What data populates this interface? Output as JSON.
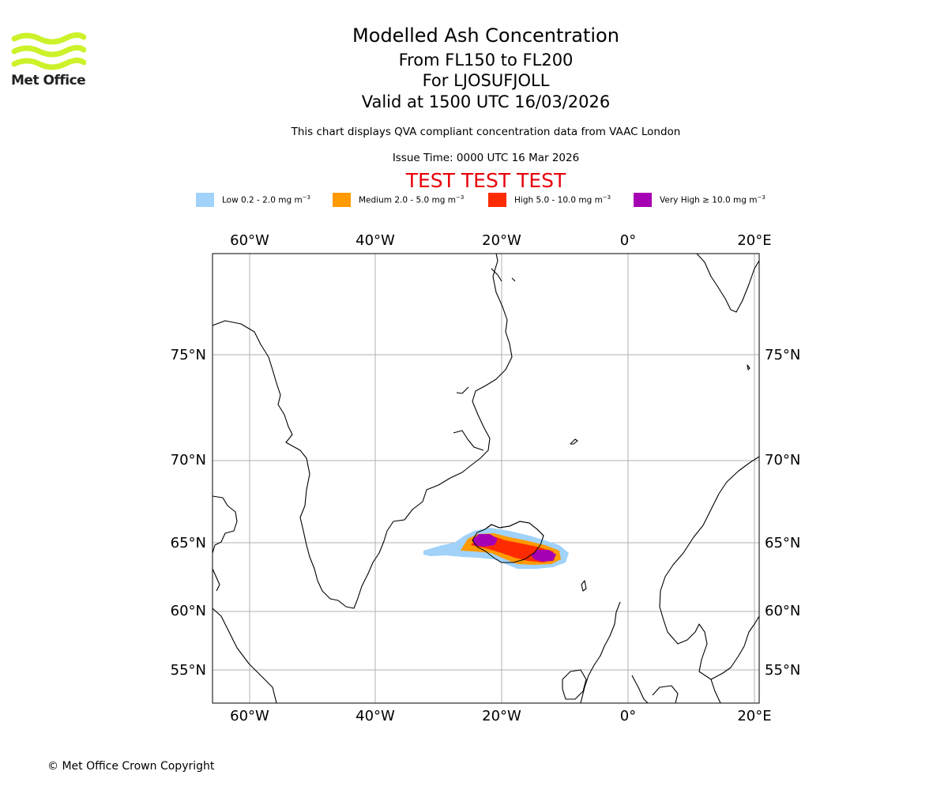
{
  "logo": {
    "text": "Met Office",
    "icon": "met-office-wave-icon",
    "color": "#ccf22a"
  },
  "titles": {
    "main": "Modelled Ash Concentration",
    "levels": "From FL150 to FL200",
    "volcano": "For LJOSUFJOLL",
    "valid": "Valid at 1500 UTC 16/03/2026",
    "description": "This chart displays QVA compliant concentration data from VAAC London",
    "issue": "Issue Time: 0000 UTC 16 Mar 2026",
    "test_banner": "TEST TEST TEST"
  },
  "legend": [
    {
      "label": "Low 0.2 - 2.0 mg m",
      "color": "#a0d2fa"
    },
    {
      "label": "Medium 2.0 - 5.0 mg m",
      "color": "#ff9a00"
    },
    {
      "label": "High 5.0 - 10.0 mg m",
      "color": "#ff2b00"
    },
    {
      "label": "Very High ≥ 10.0 mg m",
      "color": "#a600b4"
    }
  ],
  "legend_unit_sup": "−3",
  "map": {
    "lon_labels": [
      "60°W",
      "40°W",
      "20°W",
      "0°",
      "20°E"
    ],
    "lat_labels": [
      "75°N",
      "70°N",
      "65°N",
      "60°N",
      "55°N"
    ],
    "lon_values": [
      -60,
      -40,
      -20,
      0,
      20
    ],
    "lat_values": [
      75,
      70,
      65,
      60,
      55
    ]
  },
  "copyright": "© Met Office Crown Copyright"
}
